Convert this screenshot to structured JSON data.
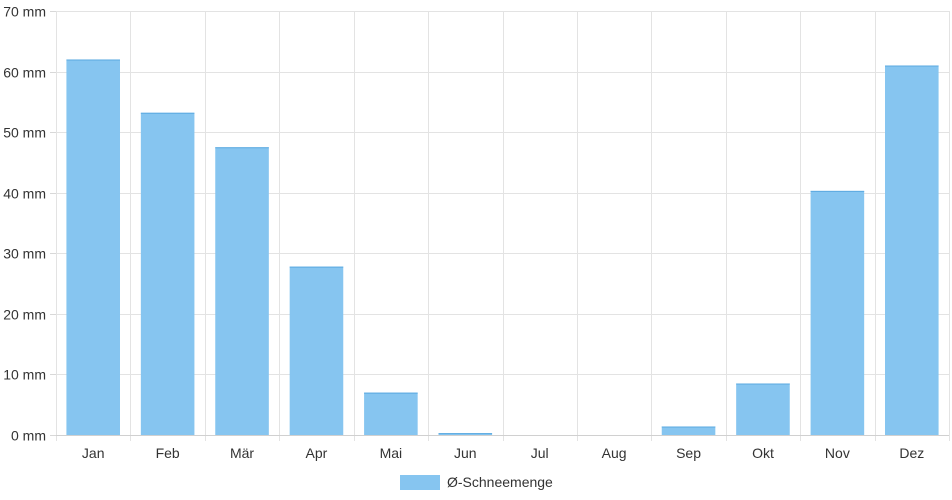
{
  "chart_data": {
    "type": "bar",
    "categories": [
      "Jan",
      "Feb",
      "Mär",
      "Apr",
      "Mai",
      "Jun",
      "Jul",
      "Aug",
      "Sep",
      "Okt",
      "Nov",
      "Dez"
    ],
    "series": [
      {
        "name": "Ø-Schneemenge",
        "color": "#86C5F0",
        "values": [
          62.0,
          53.2,
          47.5,
          27.8,
          7.0,
          0.3,
          0.0,
          0.0,
          1.4,
          8.5,
          40.3,
          61.0
        ]
      }
    ],
    "ylim": [
      0,
      70
    ],
    "yticks": [
      0,
      10,
      20,
      30,
      40,
      50,
      60,
      70
    ],
    "ytick_labels": [
      "0 mm",
      "10 mm",
      "20 mm",
      "30 mm",
      "40 mm",
      "50 mm",
      "60 mm",
      "70 mm"
    ],
    "grid": true,
    "legend": "bottom-center",
    "title": "",
    "xlabel": "",
    "ylabel": ""
  }
}
